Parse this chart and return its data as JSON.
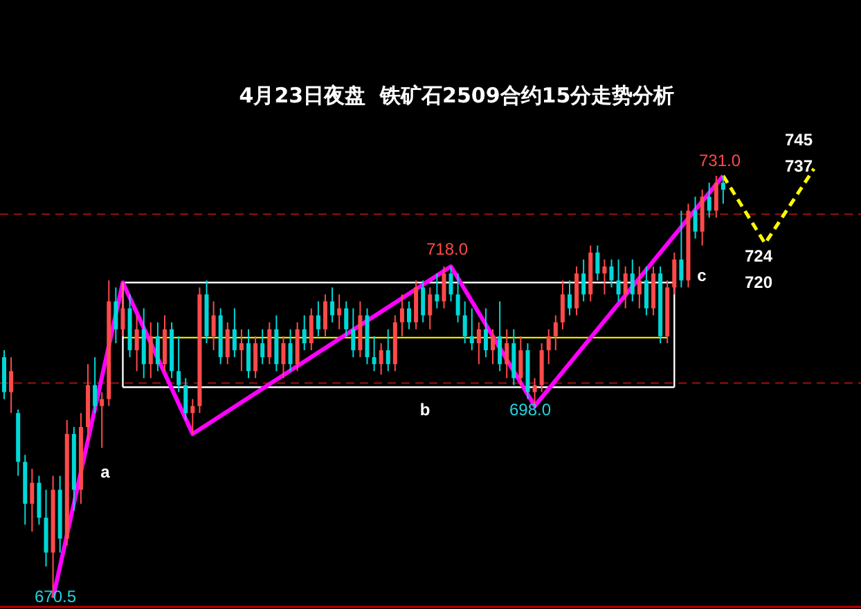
{
  "chart_data": {
    "type": "candlestick",
    "title": "4月23日夜盘  铁矿石2509合约15分走势分析",
    "categories": [
      null,
      null,
      null,
      null,
      null,
      null,
      null,
      null,
      null,
      null,
      null,
      null,
      null,
      null,
      null,
      null,
      null,
      null,
      null,
      null,
      null,
      null,
      null,
      null,
      null,
      null,
      null,
      null,
      null,
      null,
      null,
      null,
      null,
      null,
      null,
      null,
      null,
      null,
      null,
      null,
      null,
      null,
      null,
      null,
      null,
      null,
      null,
      null,
      null,
      null,
      null,
      null,
      null,
      null,
      null,
      null,
      null,
      null,
      null,
      null,
      null,
      null,
      null,
      null,
      null,
      null,
      null,
      null,
      null,
      null,
      null,
      null,
      null,
      null,
      null,
      null,
      null,
      null,
      null,
      null,
      null,
      null,
      null,
      null,
      null,
      null,
      null,
      null,
      null,
      null,
      null,
      null,
      null,
      null,
      null,
      null,
      null,
      null,
      null,
      null,
      null,
      null,
      null,
      null,
      null,
      null,
      null,
      null,
      null,
      null,
      null,
      null,
      null,
      null,
      null,
      null,
      null
    ],
    "ohlc": [
      [
        705,
        706,
        699,
        700
      ],
      [
        700,
        705,
        697,
        703
      ],
      [
        697,
        697.5,
        688,
        690
      ],
      [
        690,
        691,
        681,
        684
      ],
      [
        684,
        689,
        680,
        687
      ],
      [
        687,
        688,
        681,
        682
      ],
      [
        682,
        686,
        675,
        677
      ],
      [
        677,
        688,
        670.5,
        686
      ],
      [
        686,
        688,
        677,
        679
      ],
      [
        679,
        696,
        678,
        694
      ],
      [
        694,
        695,
        683,
        686
      ],
      [
        686,
        697,
        684,
        695
      ],
      [
        695,
        704,
        693,
        701
      ],
      [
        701,
        705,
        697,
        698
      ],
      [
        698,
        700,
        692,
        699
      ],
      [
        699,
        716,
        698,
        713
      ],
      [
        713,
        715,
        707,
        709
      ],
      [
        709,
        715.7,
        708,
        712
      ],
      [
        712,
        714,
        705,
        706
      ],
      [
        706,
        711,
        703,
        709
      ],
      [
        709,
        712,
        702,
        704
      ],
      [
        704,
        710,
        702,
        708
      ],
      [
        708,
        710,
        703,
        704
      ],
      [
        704,
        711,
        703,
        709
      ],
      [
        709,
        710,
        702,
        703
      ],
      [
        703,
        708,
        700,
        701
      ],
      [
        701,
        702,
        696,
        697
      ],
      [
        697,
        699,
        694,
        698
      ],
      [
        698,
        715,
        697,
        714
      ],
      [
        714,
        716,
        707,
        708
      ],
      [
        708,
        713,
        706,
        711
      ],
      [
        711,
        712,
        704,
        705
      ],
      [
        705,
        710,
        704,
        709
      ],
      [
        709,
        712,
        705,
        706
      ],
      [
        706,
        709,
        703,
        707
      ],
      [
        707,
        709,
        702,
        703
      ],
      [
        703,
        708,
        702,
        707
      ],
      [
        707,
        709,
        704,
        705
      ],
      [
        705,
        710,
        704,
        709
      ],
      [
        709,
        711,
        703,
        704
      ],
      [
        704,
        708,
        702,
        707
      ],
      [
        707,
        709,
        703,
        704
      ],
      [
        704,
        710,
        703,
        709
      ],
      [
        709,
        711,
        706,
        707
      ],
      [
        707,
        712,
        706,
        711
      ],
      [
        711,
        713,
        708,
        709
      ],
      [
        709,
        714,
        708,
        713
      ],
      [
        713,
        715,
        710,
        711
      ],
      [
        711,
        714,
        709,
        712
      ],
      [
        712,
        713,
        708,
        709
      ],
      [
        709,
        712,
        705,
        706
      ],
      [
        706,
        713,
        705,
        711
      ],
      [
        711,
        712,
        704,
        705
      ],
      [
        705,
        708,
        703,
        704
      ],
      [
        704,
        707,
        702.5,
        706
      ],
      [
        706,
        709,
        703,
        704
      ],
      [
        704,
        711,
        703,
        710
      ],
      [
        710,
        714,
        708,
        712
      ],
      [
        712,
        713,
        709,
        710
      ],
      [
        710,
        716,
        709,
        715
      ],
      [
        715,
        716,
        710,
        711
      ],
      [
        711,
        715,
        709,
        714
      ],
      [
        714,
        717,
        712,
        713
      ],
      [
        713,
        718,
        712,
        717
      ],
      [
        717,
        718,
        713,
        714
      ],
      [
        714,
        717,
        710,
        711
      ],
      [
        711,
        713,
        707,
        708
      ],
      [
        708,
        712,
        706,
        707
      ],
      [
        707,
        710,
        704,
        709
      ],
      [
        709,
        712,
        705,
        706
      ],
      [
        706,
        709,
        704,
        708
      ],
      [
        708,
        713,
        703,
        704
      ],
      [
        704,
        709,
        702,
        707
      ],
      [
        707,
        709,
        701,
        702
      ],
      [
        702,
        708,
        701,
        706
      ],
      [
        706,
        707,
        699,
        700
      ],
      [
        700,
        702,
        698,
        701
      ],
      [
        701,
        707,
        700,
        706
      ],
      [
        706,
        709,
        704,
        708
      ],
      [
        708,
        711,
        706,
        710
      ],
      [
        710,
        716,
        709,
        714
      ],
      [
        714,
        716,
        711,
        712
      ],
      [
        712,
        718,
        711,
        717
      ],
      [
        717,
        719,
        713,
        714
      ],
      [
        714,
        721,
        713,
        720
      ],
      [
        720,
        721,
        716,
        717
      ],
      [
        717,
        719,
        714,
        718
      ],
      [
        718,
        719,
        715,
        716
      ],
      [
        716,
        719,
        713,
        714
      ],
      [
        714,
        718,
        712,
        717
      ],
      [
        717,
        719,
        713,
        714
      ],
      [
        714,
        718,
        712,
        716
      ],
      [
        716,
        718,
        711,
        712
      ],
      [
        712,
        718,
        711,
        717
      ],
      [
        717,
        718,
        707,
        708
      ],
      [
        708,
        716,
        707,
        715
      ],
      [
        715,
        720,
        714,
        719
      ],
      [
        719,
        726,
        715,
        716
      ],
      [
        716,
        727,
        715,
        726
      ],
      [
        726,
        728,
        722,
        723
      ],
      [
        723,
        729,
        721,
        728
      ],
      [
        728,
        730,
        725,
        726
      ],
      [
        726,
        731,
        725,
        730
      ],
      [
        730,
        731,
        727,
        729
      ],
      null,
      null,
      null,
      null,
      null,
      null,
      null,
      null,
      null,
      null,
      null,
      null,
      null
    ],
    "series": [
      {
        "type": "line",
        "color": "#ffffff",
        "values": [
          null,
          null,
          null,
          null,
          null,
          null,
          null,
          null,
          null,
          null,
          null,
          null,
          null,
          null,
          null,
          null,
          null,
          715.7,
          null,
          null,
          null,
          null,
          null,
          null,
          null,
          null,
          null,
          null,
          null,
          null,
          null,
          null,
          null,
          null,
          null,
          null,
          null,
          null,
          null,
          null,
          null,
          null,
          null,
          null,
          null,
          null,
          null,
          null,
          null,
          null,
          null,
          null,
          null,
          null,
          null,
          null,
          null,
          null,
          null,
          null,
          null,
          null,
          null,
          null,
          null,
          null,
          null,
          null,
          null,
          null,
          null,
          null,
          null,
          null,
          null,
          null,
          null,
          null,
          null,
          null,
          null,
          null,
          null,
          null,
          null,
          null,
          null,
          null,
          null,
          null,
          null,
          null,
          null,
          null,
          null,
          null,
          715.7,
          null,
          null,
          null,
          null,
          null,
          null,
          null,
          null,
          null,
          null,
          null,
          null,
          null,
          null,
          null,
          null,
          null,
          null,
          null,
          null
        ]
      },
      {
        "type": "line",
        "color": "#ffffff",
        "values": [
          null,
          null,
          null,
          null,
          null,
          null,
          null,
          null,
          null,
          null,
          null,
          null,
          null,
          null,
          null,
          null,
          null,
          700.7,
          null,
          null,
          null,
          null,
          null,
          null,
          null,
          null,
          null,
          null,
          null,
          null,
          null,
          null,
          null,
          null,
          null,
          null,
          null,
          null,
          null,
          null,
          null,
          null,
          null,
          null,
          null,
          null,
          null,
          null,
          null,
          null,
          null,
          null,
          null,
          null,
          null,
          null,
          null,
          null,
          null,
          null,
          null,
          null,
          null,
          null,
          null,
          null,
          null,
          null,
          null,
          null,
          null,
          null,
          null,
          null,
          null,
          null,
          null,
          null,
          null,
          null,
          null,
          null,
          null,
          null,
          null,
          null,
          null,
          null,
          null,
          null,
          null,
          null,
          null,
          null,
          null,
          null,
          700.7,
          null,
          null,
          null,
          null,
          null,
          null,
          null,
          null,
          null,
          null,
          null,
          null,
          null,
          null,
          null,
          null,
          null,
          null,
          null,
          null
        ]
      },
      {
        "type": "line",
        "color": "#e8e800",
        "values": [
          null,
          null,
          null,
          null,
          null,
          null,
          null,
          null,
          null,
          null,
          null,
          null,
          null,
          null,
          null,
          null,
          null,
          707.8,
          null,
          null,
          null,
          null,
          null,
          null,
          null,
          null,
          null,
          null,
          null,
          null,
          null,
          null,
          null,
          null,
          null,
          null,
          null,
          null,
          null,
          null,
          null,
          null,
          null,
          null,
          null,
          null,
          null,
          null,
          null,
          null,
          null,
          null,
          null,
          null,
          null,
          null,
          null,
          null,
          null,
          null,
          null,
          null,
          null,
          null,
          null,
          null,
          null,
          null,
          null,
          null,
          null,
          null,
          null,
          null,
          null,
          null,
          null,
          null,
          null,
          null,
          null,
          null,
          null,
          null,
          null,
          null,
          null,
          null,
          null,
          null,
          null,
          null,
          null,
          null,
          null,
          707.8,
          null,
          null,
          null,
          null,
          null,
          null,
          null,
          null,
          null,
          null,
          null,
          null,
          null,
          null,
          null,
          null,
          null,
          null,
          null,
          null,
          null
        ]
      },
      {
        "type": "line",
        "color": "#ff00ff",
        "values": [
          null,
          null,
          null,
          null,
          null,
          null,
          null,
          670.5,
          null,
          null,
          null,
          null,
          null,
          null,
          null,
          null,
          null,
          715.7,
          null,
          null,
          null,
          null,
          null,
          null,
          null,
          null,
          null,
          694,
          null,
          null,
          null,
          null,
          null,
          null,
          null,
          null,
          null,
          null,
          null,
          null,
          null,
          null,
          null,
          null,
          null,
          null,
          null,
          null,
          null,
          null,
          null,
          null,
          null,
          null,
          null,
          null,
          null,
          null,
          null,
          null,
          null,
          null,
          null,
          null,
          718,
          null,
          null,
          null,
          null,
          null,
          null,
          null,
          null,
          null,
          null,
          null,
          698,
          null,
          null,
          null,
          null,
          null,
          null,
          null,
          null,
          null,
          null,
          null,
          null,
          null,
          null,
          null,
          null,
          null,
          null,
          null,
          null,
          null,
          null,
          null,
          null,
          null,
          null,
          731,
          null,
          null,
          null,
          null,
          null,
          null,
          null,
          null,
          null,
          null,
          null,
          null,
          null
        ]
      },
      {
        "type": "line",
        "color": "#ffff00",
        "line_style": "dashed",
        "values": [
          null,
          null,
          null,
          null,
          null,
          null,
          null,
          null,
          null,
          null,
          null,
          null,
          null,
          null,
          null,
          null,
          null,
          null,
          null,
          null,
          null,
          null,
          null,
          null,
          null,
          null,
          null,
          null,
          null,
          null,
          null,
          null,
          null,
          null,
          null,
          null,
          null,
          null,
          null,
          null,
          null,
          null,
          null,
          null,
          null,
          null,
          null,
          null,
          null,
          null,
          null,
          null,
          null,
          null,
          null,
          null,
          null,
          null,
          null,
          null,
          null,
          null,
          null,
          null,
          null,
          null,
          null,
          null,
          null,
          null,
          null,
          null,
          null,
          null,
          null,
          null,
          null,
          null,
          null,
          null,
          null,
          null,
          null,
          null,
          null,
          null,
          null,
          null,
          null,
          null,
          null,
          null,
          null,
          null,
          null,
          null,
          null,
          null,
          null,
          null,
          null,
          null,
          null,
          731,
          null,
          null,
          null,
          null,
          null,
          721.3,
          null,
          null,
          null,
          null,
          null,
          null,
          732
        ]
      }
    ],
    "ref_lines": [
      {
        "axis": "y",
        "value": 725.5,
        "color": "#a01010",
        "line_style": "dashed"
      },
      {
        "axis": "y",
        "value": 701.3,
        "color": "#a01010",
        "line_style": "dashed"
      }
    ],
    "annotations": [
      "670.5",
      "718.0",
      "698.0",
      "731.0",
      "a",
      "b",
      "c",
      "745",
      "737",
      "724",
      "720"
    ]
  }
}
